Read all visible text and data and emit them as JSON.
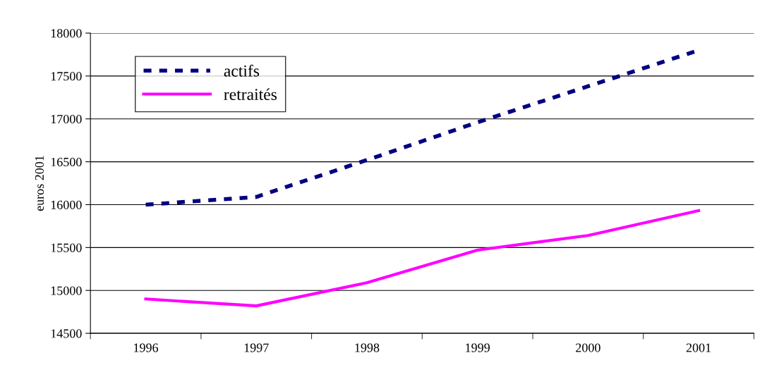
{
  "chart_data": {
    "type": "line",
    "ylabel": "euros 2001",
    "categories": [
      "1996",
      "1997",
      "1998",
      "1999",
      "2000",
      "2001"
    ],
    "series": [
      {
        "name": "actifs",
        "color": "#000080",
        "line_style": "dashed",
        "values": [
          16000,
          16090,
          16520,
          16960,
          17380,
          17800
        ]
      },
      {
        "name": "retraités",
        "color": "#ff00ff",
        "line_style": "solid",
        "values": [
          14900,
          14820,
          15090,
          15470,
          15640,
          15930
        ]
      }
    ],
    "ylim": [
      14500,
      18000
    ],
    "yticks": [
      14500,
      15000,
      15500,
      16000,
      16500,
      17000,
      17500,
      18000
    ],
    "grid": "y",
    "legend": "top left",
    "marker": "none"
  }
}
